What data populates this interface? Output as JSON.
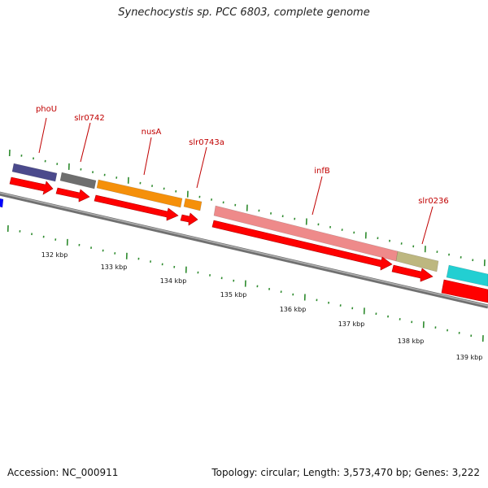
{
  "title": "Synechocystis sp. PCC 6803, complete genome",
  "footer": {
    "accession": "Accession: NC_000911",
    "summary": "Topology: circular; Length: 3,573,470 bp; Genes: 3,222"
  },
  "colors": {
    "cds": "#ff0000",
    "gene_label": "#c00000",
    "tick": "#2e8b2e",
    "backbone": "#808080"
  },
  "genes": [
    {
      "id": "phoU",
      "label": "phoU",
      "color": "#4b4a8c"
    },
    {
      "id": "slr0742",
      "label": "slr0742",
      "color": "#6e6e6e"
    },
    {
      "id": "nusA",
      "label": "nusA",
      "color": "#f5900a"
    },
    {
      "id": "slr0743a",
      "label": "slr0743a",
      "color": "#f5900a"
    },
    {
      "id": "infB",
      "label": "infB",
      "color": "#ee8a8a"
    },
    {
      "id": "slr0236",
      "label": "slr0236",
      "color": "#bdb780"
    },
    {
      "id": "next-gene",
      "label": "",
      "color": "#22cfd2"
    },
    {
      "id": "prev-gene",
      "label": "",
      "color": "#0000ff"
    }
  ],
  "scale_labels": [
    "132 kbp",
    "133 kbp",
    "134 kbp",
    "135 kbp",
    "136 kbp",
    "137 kbp",
    "138 kbp",
    "139 kbp"
  ]
}
